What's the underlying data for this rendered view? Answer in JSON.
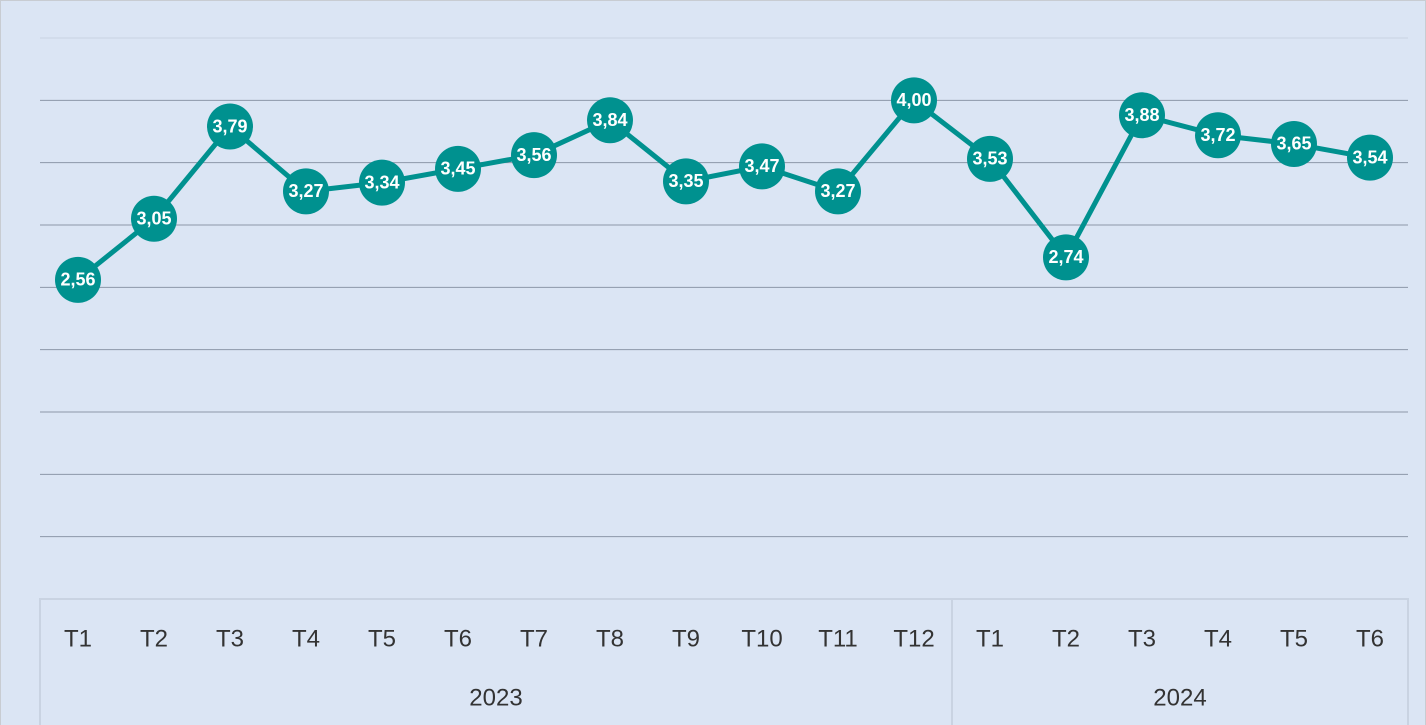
{
  "chart_data": {
    "type": "line",
    "groups": [
      {
        "name": "2023",
        "categories": [
          "T1",
          "T2",
          "T3",
          "T4",
          "T5",
          "T6",
          "T7",
          "T8",
          "T9",
          "T10",
          "T11",
          "T12"
        ]
      },
      {
        "name": "2024",
        "categories": [
          "T1",
          "T2",
          "T3",
          "T4",
          "T5",
          "T6"
        ]
      }
    ],
    "values": [
      2.56,
      3.05,
      3.79,
      3.27,
      3.34,
      3.45,
      3.56,
      3.84,
      3.35,
      3.47,
      3.27,
      4.0,
      3.53,
      2.74,
      3.88,
      3.72,
      3.65,
      3.54
    ],
    "value_labels": [
      "2,56",
      "3,05",
      "3,79",
      "3,27",
      "3,34",
      "3,45",
      "3,56",
      "3,84",
      "3,35",
      "3,47",
      "3,27",
      "4,00",
      "3,53",
      "2,74",
      "3,88",
      "3,72",
      "3,65",
      "3,54"
    ],
    "color": "#00918f",
    "ylim": [
      0,
      4.5
    ],
    "yticks": [
      0.5,
      1,
      1.5,
      2,
      2.5,
      3,
      3.5,
      4,
      4.5
    ],
    "grid": true
  }
}
